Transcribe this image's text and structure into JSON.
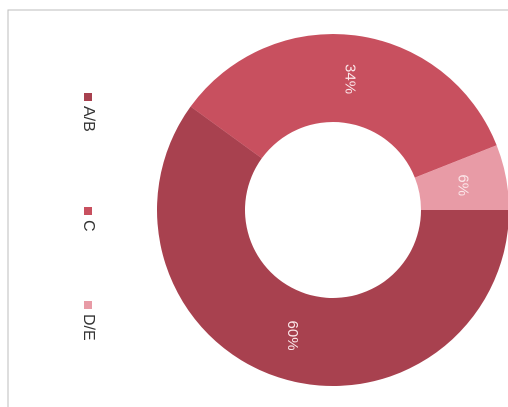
{
  "chart_data": {
    "type": "donut",
    "categories": [
      "A/B",
      "C",
      "D/E"
    ],
    "values": [
      60,
      34,
      6
    ],
    "value_labels": [
      "60%",
      "34%",
      "6%"
    ],
    "colors": [
      "#a8414f",
      "#c8505f",
      "#e89ba6"
    ],
    "legend": "left"
  }
}
